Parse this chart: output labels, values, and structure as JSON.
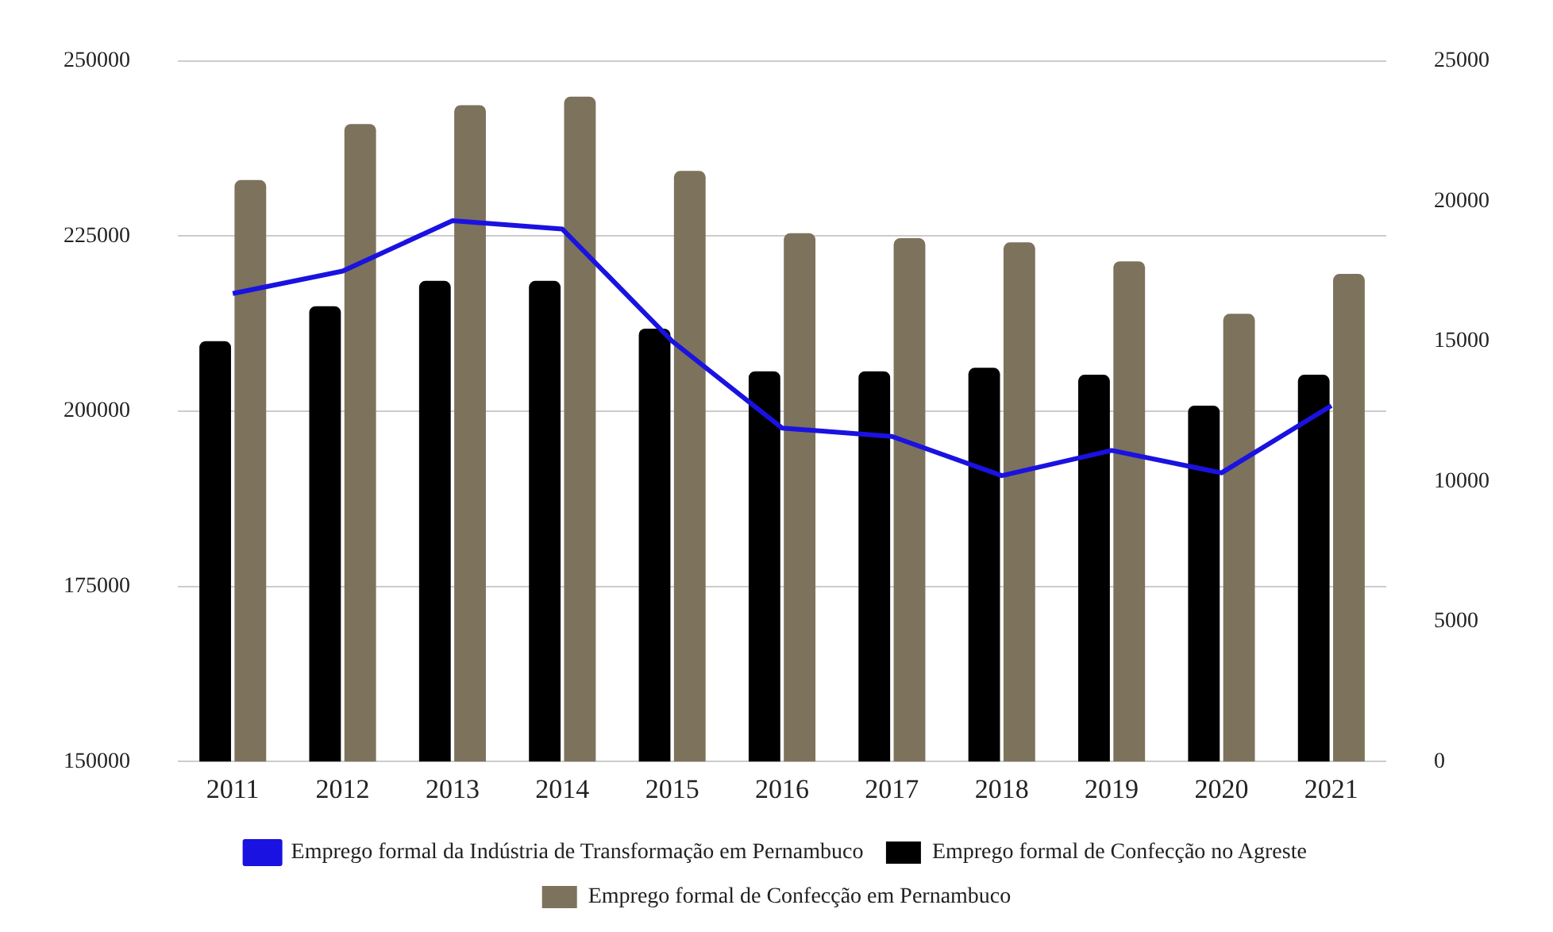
{
  "chart_data": {
    "type": "bar",
    "categories": [
      "2011",
      "2012",
      "2013",
      "2014",
      "2015",
      "2016",
      "2017",
      "2018",
      "2019",
      "2020",
      "2021"
    ],
    "series": [
      {
        "name": "Emprego formal de Confecção no Agreste",
        "color": "#000000",
        "values": [
          210000,
          215000,
          218600,
          218600,
          211800,
          205700,
          205700,
          206200,
          205200,
          200800,
          205200
        ]
      },
      {
        "name": "Emprego formal de Confecção em Pernambuco",
        "color": "#7d725c",
        "values": [
          233000,
          241000,
          243700,
          244900,
          234300,
          225400,
          224700,
          224100,
          221400,
          213900,
          219600
        ]
      },
      {
        "name": "Emprego formal da Indústria de Transformação em Pernambuco",
        "type": "line",
        "axis": "y2",
        "color": "#1a12e0",
        "values": [
          16700,
          17500,
          19300,
          19000,
          15000,
          11900,
          11600,
          10200,
          11100,
          10300,
          12700
        ]
      }
    ],
    "ylim": [
      150000,
      250000
    ],
    "yticks": [
      150000,
      175000,
      200000,
      225000,
      250000
    ],
    "y2lim": [
      0,
      25000
    ],
    "y2ticks": [
      0,
      5000,
      10000,
      15000,
      20000,
      25000
    ],
    "grid": "y",
    "legend": "bottom",
    "marker": "none",
    "line_style": "solid"
  }
}
